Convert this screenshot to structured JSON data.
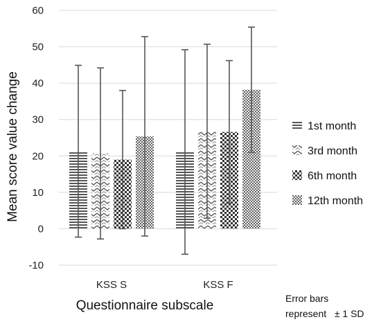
{
  "chart_data": {
    "type": "bar",
    "categories": [
      "KSS S",
      "KSS F"
    ],
    "series": [
      {
        "name": "1st month",
        "values": [
          21.3,
          21.1
        ],
        "sd": [
          23.6,
          28.1
        ],
        "pattern": "horizontal-lines"
      },
      {
        "name": "3rd month",
        "values": [
          20.7,
          26.8
        ],
        "sd": [
          23.5,
          23.9
        ],
        "pattern": "zigzag"
      },
      {
        "name": "6th month",
        "values": [
          19.0,
          26.6
        ],
        "sd": [
          19.0,
          19.6
        ],
        "pattern": "checker-dense"
      },
      {
        "name": "12th month",
        "values": [
          25.4,
          38.2
        ],
        "sd": [
          27.4,
          17.2
        ],
        "pattern": "checker-fine"
      }
    ],
    "xlabel": "Questionnaire subscale",
    "ylabel": "Mean score value change",
    "ylim": [
      -10,
      60
    ],
    "yticks": [
      -10,
      0,
      10,
      20,
      30,
      40,
      50,
      60
    ],
    "grid": true,
    "legend_position": "right",
    "note_line1": "Error bars",
    "note_line2": "represent   ± 1 SD"
  }
}
